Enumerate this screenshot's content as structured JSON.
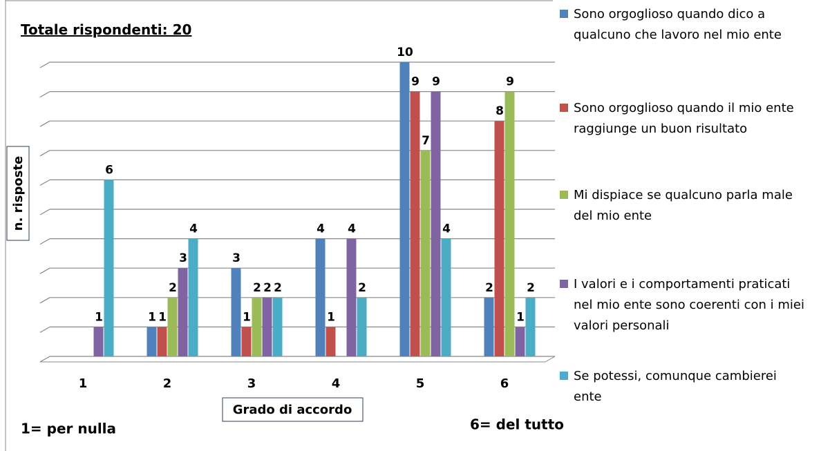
{
  "chart_data": {
    "type": "bar",
    "title": "Totale rispondenti: 20",
    "y_label": "n. risposte",
    "x_label": "Grado di accordo",
    "annotations": [
      "1= per nulla",
      "6= del tutto"
    ],
    "categories": [
      "1",
      "2",
      "3",
      "4",
      "5",
      "6"
    ],
    "series": [
      {
        "name": "Sono orgoglioso quando dico a qualcuno che lavoro nel mio ente",
        "color": "#4f81bd",
        "values": [
          0,
          1,
          3,
          4,
          10,
          2
        ]
      },
      {
        "name": "Sono orgoglioso quando il mio ente raggiunge un buon risultato",
        "color": "#c0504d",
        "values": [
          0,
          1,
          1,
          1,
          9,
          8
        ]
      },
      {
        "name": "Mi dispiace se qualcuno parla male del mio ente",
        "color": "#9bbb59",
        "values": [
          0,
          2,
          2,
          0,
          7,
          9
        ]
      },
      {
        "name": "I valori e i comportamenti praticati nel mio ente sono coerenti con i miei valori personali",
        "color": "#8064a2",
        "values": [
          1,
          3,
          2,
          4,
          9,
          1
        ]
      },
      {
        "name": "Se potessi, comunque cambierei ente",
        "color": "#4bacc6",
        "values": [
          6,
          4,
          2,
          2,
          4,
          2
        ]
      }
    ],
    "ylim": [
      0,
      10
    ],
    "yticks": [
      0,
      1,
      2,
      3,
      4,
      5,
      6,
      7,
      8,
      9,
      10
    ],
    "grid": true,
    "legend": "right"
  }
}
